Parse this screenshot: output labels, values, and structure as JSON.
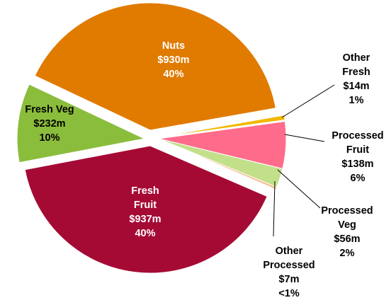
{
  "chart_data": {
    "type": "pie",
    "categories": [
      [
        "Nuts"
      ],
      [
        "Other",
        "Fresh"
      ],
      [
        "Processed",
        "Fruit"
      ],
      [
        "Processed",
        "Veg"
      ],
      [
        "Other",
        "Processed"
      ],
      [
        "Fresh",
        "Fruit"
      ],
      [
        "Fresh Veg"
      ]
    ],
    "values": [
      930,
      14,
      138,
      56,
      7,
      937,
      232
    ],
    "value_labels": [
      "$930m",
      "$14m",
      "$138m",
      "$56m",
      "$7m",
      "$937m",
      "$232m"
    ],
    "percent_labels": [
      "40%",
      "1%",
      "6%",
      "2%",
      "<1%",
      "40%",
      "10%"
    ],
    "colors": [
      "#e07b00",
      "#f2b800",
      "#ff6b8a",
      "#c2e08a",
      "#f7b98a",
      "#a50a35",
      "#8bbd3c"
    ]
  }
}
